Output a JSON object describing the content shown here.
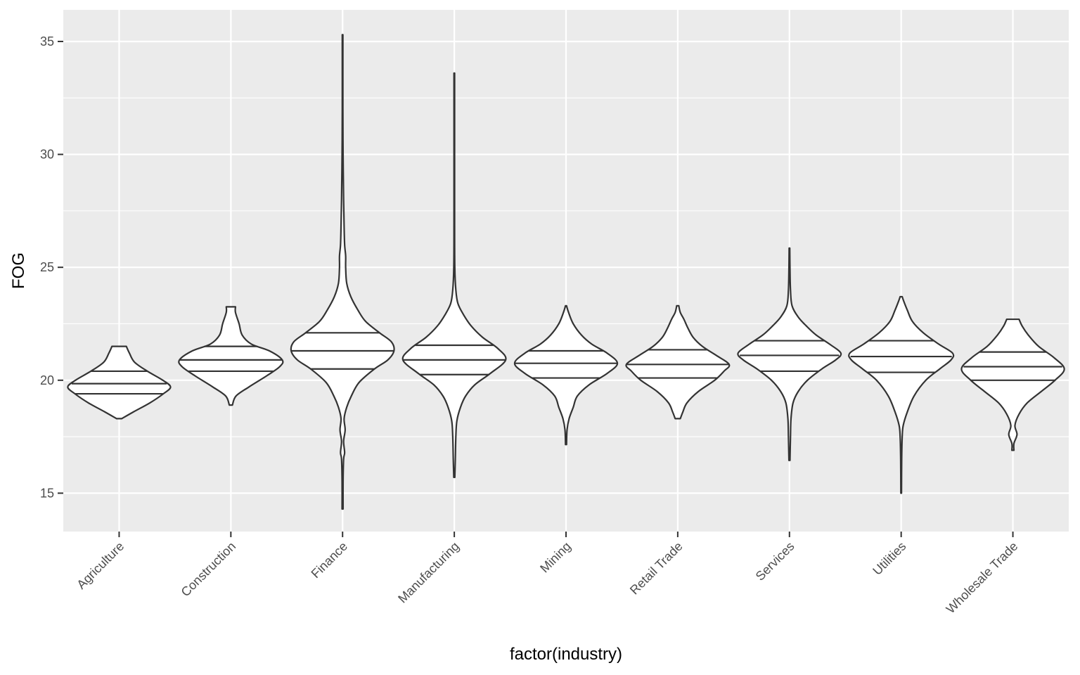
{
  "chart_data": {
    "type": "violin",
    "xlabel": "factor(industry)",
    "ylabel": "FOG",
    "ylim": [
      13.3,
      36.4
    ],
    "y_ticks": [
      15,
      20,
      25,
      30,
      35
    ],
    "grid": true,
    "categories": [
      "Agriculture",
      "Construction",
      "Finance",
      "Manufacturing",
      "Mining",
      "Retail Trade",
      "Services",
      "Utilities",
      "Wholesale Trade"
    ],
    "violins": [
      {
        "category": "Agriculture",
        "quantiles": [
          19.4,
          19.85,
          20.4
        ],
        "profile": [
          [
            18.3,
            0.05
          ],
          [
            18.6,
            0.28
          ],
          [
            19.0,
            0.6
          ],
          [
            19.4,
            0.86
          ],
          [
            19.7,
            1.0
          ],
          [
            20.0,
            0.85
          ],
          [
            20.4,
            0.55
          ],
          [
            20.8,
            0.3
          ],
          [
            21.2,
            0.2
          ],
          [
            21.5,
            0.14
          ]
        ]
      },
      {
        "category": "Construction",
        "quantiles": [
          20.4,
          20.9,
          21.5
        ],
        "profile": [
          [
            18.9,
            0.03
          ],
          [
            19.3,
            0.1
          ],
          [
            19.7,
            0.35
          ],
          [
            20.2,
            0.7
          ],
          [
            20.6,
            0.95
          ],
          [
            20.9,
            1.0
          ],
          [
            21.3,
            0.75
          ],
          [
            21.6,
            0.4
          ],
          [
            22.0,
            0.22
          ],
          [
            22.5,
            0.16
          ],
          [
            23.0,
            0.09
          ],
          [
            23.25,
            0.09
          ]
        ]
      },
      {
        "category": "Finance",
        "quantiles": [
          20.5,
          21.3,
          22.1
        ],
        "profile": [
          [
            14.3,
            0.01
          ],
          [
            15.5,
            0.01
          ],
          [
            16.5,
            0.02
          ],
          [
            16.8,
            0.04
          ],
          [
            17.3,
            0.02
          ],
          [
            17.8,
            0.05
          ],
          [
            18.3,
            0.03
          ],
          [
            18.8,
            0.08
          ],
          [
            19.3,
            0.17
          ],
          [
            19.9,
            0.32
          ],
          [
            20.5,
            0.62
          ],
          [
            20.9,
            0.88
          ],
          [
            21.3,
            1.0
          ],
          [
            21.7,
            0.95
          ],
          [
            22.1,
            0.72
          ],
          [
            22.6,
            0.45
          ],
          [
            23.1,
            0.3
          ],
          [
            23.7,
            0.16
          ],
          [
            24.3,
            0.08
          ],
          [
            25.0,
            0.06
          ],
          [
            25.5,
            0.06
          ],
          [
            26.0,
            0.04
          ],
          [
            26.8,
            0.03
          ],
          [
            28.0,
            0.02
          ],
          [
            30.0,
            0.01
          ],
          [
            32.0,
            0.005
          ],
          [
            35.3,
            0.005
          ]
        ]
      },
      {
        "category": "Manufacturing",
        "quantiles": [
          20.25,
          20.9,
          21.55
        ],
        "profile": [
          [
            15.7,
            0.01
          ],
          [
            16.5,
            0.02
          ],
          [
            17.5,
            0.03
          ],
          [
            18.2,
            0.05
          ],
          [
            18.8,
            0.12
          ],
          [
            19.3,
            0.22
          ],
          [
            19.8,
            0.4
          ],
          [
            20.3,
            0.7
          ],
          [
            20.9,
            1.0
          ],
          [
            21.4,
            0.85
          ],
          [
            21.9,
            0.55
          ],
          [
            22.4,
            0.33
          ],
          [
            22.9,
            0.18
          ],
          [
            23.4,
            0.07
          ],
          [
            24.0,
            0.03
          ],
          [
            25.0,
            0.01
          ],
          [
            27.0,
            0.005
          ],
          [
            33.6,
            0.005
          ]
        ]
      },
      {
        "category": "Mining",
        "quantiles": [
          20.1,
          20.75,
          21.3
        ],
        "profile": [
          [
            17.15,
            0.01
          ],
          [
            17.8,
            0.02
          ],
          [
            18.3,
            0.06
          ],
          [
            18.8,
            0.14
          ],
          [
            19.3,
            0.22
          ],
          [
            19.8,
            0.45
          ],
          [
            20.3,
            0.8
          ],
          [
            20.75,
            1.0
          ],
          [
            21.2,
            0.8
          ],
          [
            21.6,
            0.5
          ],
          [
            22.0,
            0.3
          ],
          [
            22.5,
            0.14
          ],
          [
            23.0,
            0.05
          ],
          [
            23.3,
            0.01
          ]
        ]
      },
      {
        "category": "Retail Trade",
        "quantiles": [
          20.1,
          20.7,
          21.35
        ],
        "profile": [
          [
            18.3,
            0.05
          ],
          [
            18.6,
            0.1
          ],
          [
            19.0,
            0.18
          ],
          [
            19.5,
            0.4
          ],
          [
            20.0,
            0.72
          ],
          [
            20.4,
            0.9
          ],
          [
            20.7,
            1.0
          ],
          [
            21.1,
            0.75
          ],
          [
            21.5,
            0.48
          ],
          [
            21.9,
            0.3
          ],
          [
            22.3,
            0.2
          ],
          [
            22.7,
            0.12
          ],
          [
            23.0,
            0.05
          ],
          [
            23.3,
            0.02
          ]
        ]
      },
      {
        "category": "Services",
        "quantiles": [
          20.4,
          21.1,
          21.75
        ],
        "profile": [
          [
            16.45,
            0.01
          ],
          [
            17.5,
            0.02
          ],
          [
            18.3,
            0.03
          ],
          [
            19.0,
            0.07
          ],
          [
            19.5,
            0.17
          ],
          [
            20.0,
            0.35
          ],
          [
            20.5,
            0.63
          ],
          [
            20.9,
            0.9
          ],
          [
            21.2,
            1.0
          ],
          [
            21.6,
            0.78
          ],
          [
            22.0,
            0.52
          ],
          [
            22.4,
            0.33
          ],
          [
            22.8,
            0.17
          ],
          [
            23.3,
            0.05
          ],
          [
            24.0,
            0.02
          ],
          [
            25.0,
            0.01
          ],
          [
            25.85,
            0.005
          ]
        ]
      },
      {
        "category": "Utilities",
        "quantiles": [
          20.35,
          21.05,
          21.75
        ],
        "profile": [
          [
            15.0,
            0.005
          ],
          [
            16.5,
            0.01
          ],
          [
            17.5,
            0.02
          ],
          [
            18.0,
            0.04
          ],
          [
            18.6,
            0.12
          ],
          [
            19.3,
            0.25
          ],
          [
            20.0,
            0.48
          ],
          [
            20.5,
            0.75
          ],
          [
            20.9,
            0.97
          ],
          [
            21.2,
            1.0
          ],
          [
            21.6,
            0.73
          ],
          [
            22.1,
            0.43
          ],
          [
            22.6,
            0.22
          ],
          [
            23.1,
            0.12
          ],
          [
            23.5,
            0.05
          ],
          [
            23.7,
            0.02
          ]
        ]
      },
      {
        "category": "Wholesale Trade",
        "quantiles": [
          20.0,
          20.6,
          21.25
        ],
        "profile": [
          [
            16.9,
            0.02
          ],
          [
            17.2,
            0.02
          ],
          [
            17.6,
            0.08
          ],
          [
            18.0,
            0.04
          ],
          [
            18.5,
            0.12
          ],
          [
            19.0,
            0.28
          ],
          [
            19.5,
            0.55
          ],
          [
            20.0,
            0.82
          ],
          [
            20.5,
            1.0
          ],
          [
            21.0,
            0.8
          ],
          [
            21.5,
            0.5
          ],
          [
            22.0,
            0.3
          ],
          [
            22.4,
            0.18
          ],
          [
            22.7,
            0.12
          ]
        ]
      }
    ],
    "colors": {
      "panel_background": "#ebebeb",
      "grid_major": "#ffffff",
      "violin_fill": "#ffffff",
      "violin_outline": "#333333",
      "tick_text": "#4d4d4d",
      "axis_title": "#000000"
    }
  }
}
